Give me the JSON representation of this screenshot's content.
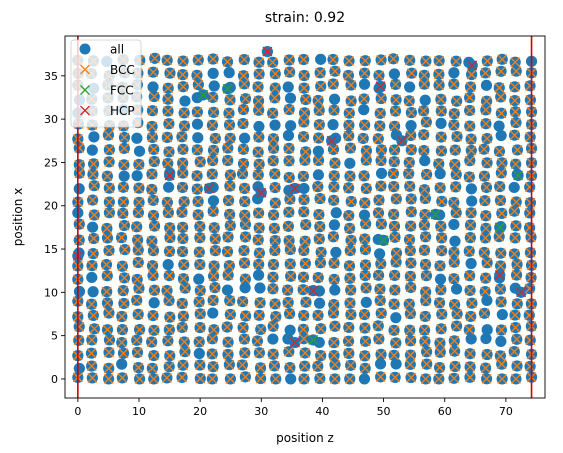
{
  "chart_data": {
    "type": "scatter",
    "title": "strain: 0.92",
    "xlabel": "position z",
    "ylabel": "position x",
    "xlim": [
      -2.1,
      76.4
    ],
    "ylim": [
      -2.2,
      39.6
    ],
    "xticks": [
      0,
      10,
      20,
      30,
      40,
      50,
      60,
      70
    ],
    "yticks": [
      0,
      5,
      10,
      15,
      20,
      25,
      30,
      35
    ],
    "grid": false,
    "legend": {
      "position": "top-left",
      "entries": [
        "all",
        "BCC",
        "FCC",
        "HCP"
      ]
    },
    "lattice": {
      "z_min": 0,
      "z_max": 74.2,
      "z_step": 2.47,
      "x_min": 0,
      "x_max": 37.9,
      "x_step": 1.47,
      "jitter": 0.55
    },
    "series": [
      {
        "name": "all",
        "marker": "circle",
        "color": "#1f77b4"
      },
      {
        "name": "BCC",
        "marker": "x",
        "color": "#ff7f0e"
      },
      {
        "name": "FCC",
        "marker": "x",
        "color": "#2ca02c",
        "points": [
          [
            24.5,
            33.5
          ],
          [
            58.5,
            19
          ],
          [
            50,
            16
          ],
          [
            69,
            17.5
          ],
          [
            72,
            23.5
          ],
          [
            38.5,
            4.5
          ],
          [
            20.5,
            32.8
          ]
        ]
      },
      {
        "name": "HCP",
        "marker": "x",
        "color": "#d62728",
        "points": [
          [
            31,
            37.8
          ],
          [
            49.5,
            33.8
          ],
          [
            64.5,
            36.2
          ],
          [
            41.5,
            27.5
          ],
          [
            53,
            27.5
          ],
          [
            21.5,
            22
          ],
          [
            30,
            21.5
          ],
          [
            35.5,
            22
          ],
          [
            69,
            12
          ],
          [
            38.5,
            10.2
          ],
          [
            72.5,
            10
          ],
          [
            35.5,
            4.2
          ],
          [
            0,
            14.2
          ],
          [
            15,
            23.5
          ]
        ]
      }
    ],
    "vlines": [
      {
        "x": 0,
        "color": "#d00000"
      },
      {
        "x": 74.2,
        "color": "#d00000"
      }
    ]
  }
}
